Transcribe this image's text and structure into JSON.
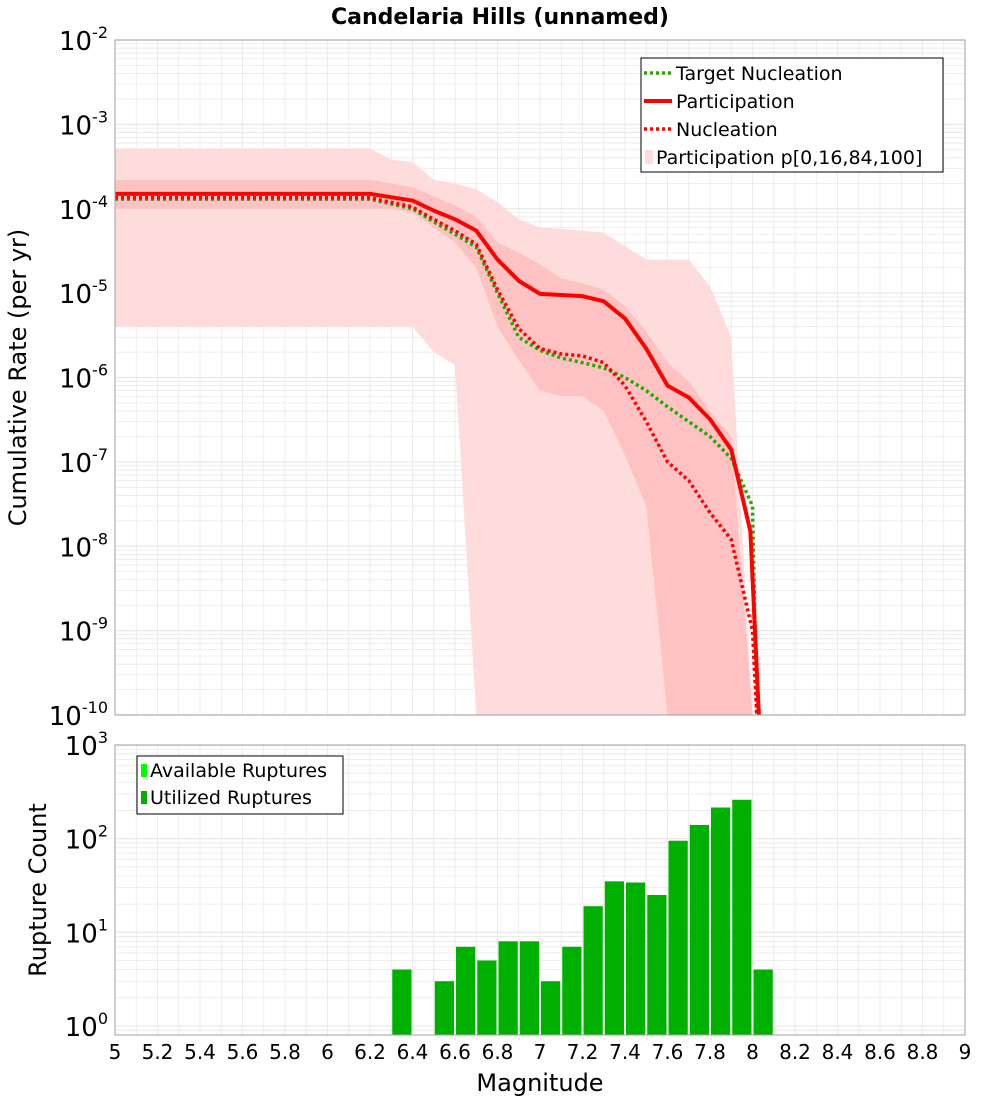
{
  "title": "Candelaria Hills (unnamed)",
  "chart_data": [
    {
      "id": "top",
      "type": "line",
      "title": "Candelaria Hills (unnamed)",
      "xlabel": "",
      "ylabel": "Cumulative Rate (per yr)",
      "xscale": "linear",
      "yscale": "log",
      "xlim": [
        5,
        9
      ],
      "ylim": [
        1e-10,
        0.01
      ],
      "y_tick_exponents": [
        -10,
        -9,
        -8,
        -7,
        -6,
        -5,
        -4,
        -3,
        -2
      ],
      "grid": true,
      "legend_position": "top-right",
      "legend": [
        "Target Nucleation",
        "Participation",
        "Nucleation",
        "Participation p[0,16,84,100]"
      ],
      "series": [
        {
          "name": "Target Nucleation",
          "style": "dotted",
          "color": "#22aa00",
          "x": [
            5.0,
            6.2,
            6.4,
            6.5,
            6.6,
            6.7,
            6.8,
            6.9,
            7.0,
            7.1,
            7.2,
            7.3,
            7.4,
            7.5,
            7.6,
            7.7,
            7.8,
            7.9,
            8.0,
            8.02
          ],
          "y": [
            0.00013,
            0.00013,
            0.0001,
            7e-05,
            5e-05,
            3.5e-05,
            1e-05,
            3e-06,
            2.1e-06,
            1.7e-06,
            1.5e-06,
            1.3e-06,
            1e-06,
            7e-07,
            4.5e-07,
            3e-07,
            2e-07,
            1.1e-07,
            3e-08,
            1e-10
          ]
        },
        {
          "name": "Participation",
          "style": "solid",
          "color": "#ff0000",
          "x": [
            5.0,
            6.2,
            6.4,
            6.5,
            6.6,
            6.7,
            6.8,
            6.9,
            7.0,
            7.1,
            7.2,
            7.3,
            7.4,
            7.5,
            7.6,
            7.7,
            7.8,
            7.9,
            7.99,
            8.03
          ],
          "y": [
            0.00015,
            0.00015,
            0.000125,
            9.5e-05,
            7.5e-05,
            5.5e-05,
            2.5e-05,
            1.4e-05,
            9.8e-06,
            9.5e-06,
            9.2e-06,
            8e-06,
            5e-06,
            2.2e-06,
            8e-07,
            5.8e-07,
            3.2e-07,
            1.4e-07,
            1.5e-08,
            1e-10
          ]
        },
        {
          "name": "Nucleation",
          "style": "dotted",
          "color": "#ff0000",
          "x": [
            5.0,
            6.2,
            6.4,
            6.5,
            6.6,
            6.7,
            6.8,
            6.9,
            7.0,
            7.1,
            7.2,
            7.3,
            7.4,
            7.5,
            7.6,
            7.7,
            7.8,
            7.9,
            8.0,
            8.02
          ],
          "y": [
            0.000135,
            0.000135,
            0.000105,
            7.5e-05,
            5.5e-05,
            3.8e-05,
            1.1e-05,
            3.8e-06,
            2.2e-06,
            1.9e-06,
            1.8e-06,
            1.5e-06,
            8e-07,
            3e-07,
            1e-07,
            6e-08,
            2.5e-08,
            1.2e-08,
            1e-09,
            1e-10
          ]
        }
      ],
      "bands": [
        {
          "name": "p0-p100",
          "x": [
            5.0,
            6.2,
            6.3,
            6.4,
            6.5,
            6.6,
            6.7,
            6.8,
            6.9,
            7.0,
            7.1,
            7.2,
            7.3,
            7.4,
            7.5,
            7.6,
            7.7,
            7.8,
            7.9,
            8.0
          ],
          "lower": [
            4e-06,
            4e-06,
            4e-06,
            4e-06,
            2e-06,
            1.4e-06,
            1e-10,
            1e-10,
            1e-10,
            1e-10,
            1e-10,
            1e-10,
            1e-10,
            1e-10,
            1e-10,
            1e-10,
            1e-10,
            1e-10,
            1e-10,
            1e-10
          ],
          "upper": [
            0.00052,
            0.00052,
            0.00038,
            0.00036,
            0.00022,
            0.0002,
            0.00017,
            0.00012,
            7.5e-05,
            6e-05,
            5.8e-05,
            5.5e-05,
            5.2e-05,
            3.6e-05,
            2.5e-05,
            2.5e-05,
            2.5e-05,
            1.2e-05,
            3e-06,
            1e-10
          ]
        },
        {
          "name": "p16-p84",
          "x": [
            5.0,
            6.2,
            6.3,
            6.4,
            6.5,
            6.6,
            6.7,
            6.8,
            6.9,
            7.0,
            7.1,
            7.2,
            7.3,
            7.4,
            7.5,
            7.6,
            7.7,
            7.8,
            7.9,
            8.0
          ],
          "lower": [
            0.0001,
            0.0001,
            0.0001,
            9e-05,
            6e-05,
            4e-05,
            2e-05,
            4e-06,
            1.6e-06,
            7e-07,
            6e-07,
            6e-07,
            4e-07,
            1.2e-07,
            3e-08,
            1e-10,
            1e-10,
            1e-10,
            1e-10,
            1e-10
          ],
          "upper": [
            0.00022,
            0.00022,
            0.0002,
            0.00018,
            0.00014,
            0.00011,
            8e-05,
            4e-05,
            3e-05,
            2.2e-05,
            1.5e-05,
            1.3e-05,
            1.1e-05,
            7e-06,
            3.5e-06,
            1.5e-06,
            9e-07,
            4e-07,
            2e-07,
            1e-10
          ]
        }
      ]
    },
    {
      "id": "bottom",
      "type": "bar",
      "xlabel": "Magnitude",
      "ylabel": "Rupture Count",
      "xscale": "linear",
      "yscale": "log",
      "xlim": [
        5,
        9
      ],
      "ylim": [
        0.8,
        1000
      ],
      "y_tick_exponents": [
        0,
        1,
        2,
        3
      ],
      "x_ticks": [
        "5",
        "5.2",
        "5.4",
        "5.6",
        "5.8",
        "6",
        "6.2",
        "6.4",
        "6.6",
        "6.8",
        "7",
        "7.2",
        "7.4",
        "7.6",
        "7.8",
        "8",
        "8.2",
        "8.4",
        "8.6",
        "8.8",
        "9"
      ],
      "grid": true,
      "legend_position": "top-left",
      "legend": [
        "Available Ruptures",
        "Utilized Ruptures"
      ],
      "bar_width": 0.1,
      "x": [
        6.35,
        6.55,
        6.65,
        6.75,
        6.85,
        6.95,
        7.05,
        7.15,
        7.25,
        7.35,
        7.45,
        7.55,
        7.65,
        7.75,
        7.85,
        7.95,
        8.05
      ],
      "series": [
        {
          "name": "Utilized Ruptures",
          "color": "#00b000",
          "values": [
            4,
            3,
            7,
            5,
            8,
            8,
            3,
            7,
            19,
            35,
            34,
            25,
            95,
            140,
            215,
            260,
            4
          ]
        }
      ]
    }
  ],
  "colors": {
    "grid": "#e8e8e8",
    "frame": "#a0a0a0",
    "band_outer": "#ffdcdc",
    "band_inner": "#ffc2c2",
    "available": "#00ff00",
    "utilized": "#00b000"
  }
}
